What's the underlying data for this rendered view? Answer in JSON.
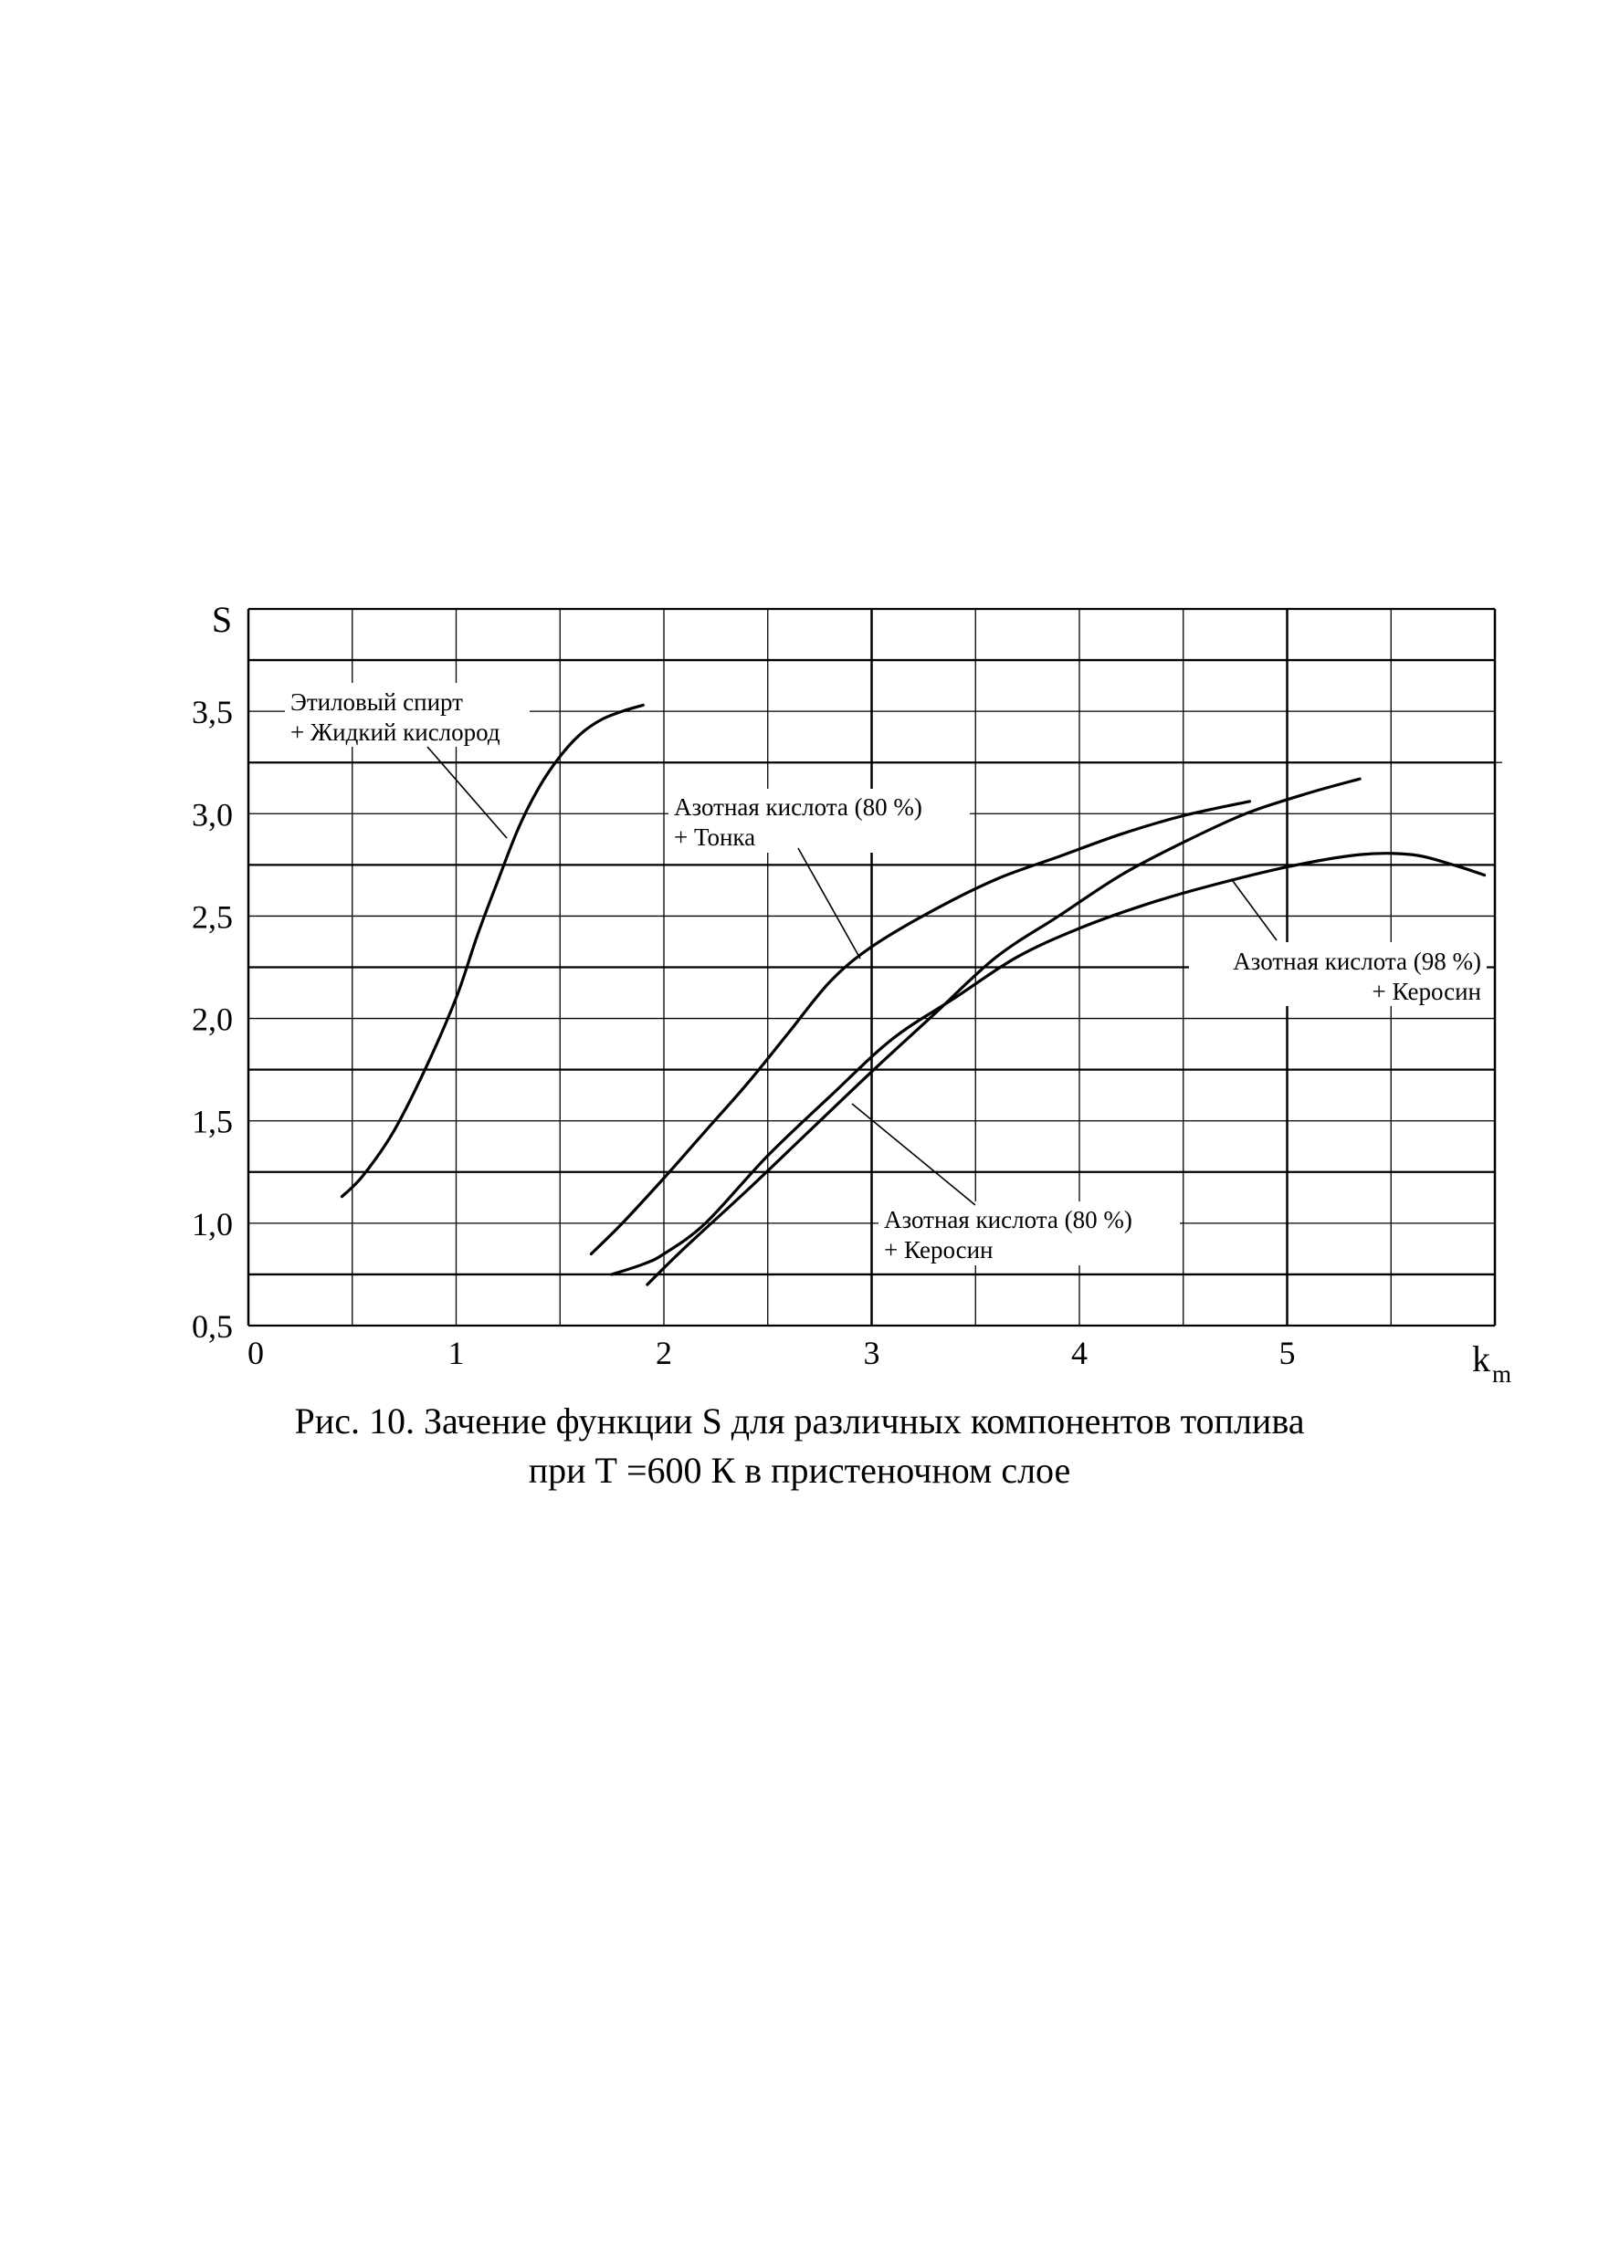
{
  "chart_data": {
    "type": "line",
    "title": "",
    "xlabel": "k",
    "xlabel_sub": "m",
    "ylabel": "S",
    "xlim": [
      0,
      6
    ],
    "ylim": [
      0.5,
      4.0
    ],
    "xticks": [
      0,
      1,
      2,
      3,
      4,
      5
    ],
    "xtick_labels": [
      "0",
      "1",
      "2",
      "3",
      "4",
      "5"
    ],
    "yticks": [
      0.5,
      1.0,
      1.5,
      2.0,
      2.5,
      3.0,
      3.5
    ],
    "ytick_labels": [
      "0,5",
      "1,0",
      "1,5",
      "2,0",
      "2,5",
      "3,0",
      "3,5"
    ],
    "grid": true,
    "series": [
      {
        "name_lines": [
          "Этиловый спирт",
          "+ Жидкий кислород"
        ],
        "x": [
          0.45,
          0.55,
          0.7,
          0.85,
          1.0,
          1.1,
          1.2,
          1.3,
          1.4,
          1.5,
          1.6,
          1.7,
          1.8,
          1.9
        ],
        "y": [
          1.13,
          1.23,
          1.45,
          1.75,
          2.1,
          2.4,
          2.67,
          2.93,
          3.13,
          3.28,
          3.39,
          3.46,
          3.5,
          3.53
        ]
      },
      {
        "name_lines": [
          "Азотная кислота (80 %)",
          "+ Тонка"
        ],
        "x": [
          1.65,
          1.8,
          2.0,
          2.2,
          2.4,
          2.6,
          2.8,
          3.0,
          3.3,
          3.6,
          3.9,
          4.2,
          4.5,
          4.82
        ],
        "y": [
          0.85,
          1.0,
          1.22,
          1.45,
          1.68,
          1.93,
          2.18,
          2.35,
          2.53,
          2.68,
          2.79,
          2.9,
          2.99,
          3.06
        ]
      },
      {
        "name_lines": [
          "Азотная кислота (98 %)",
          "+ Керосин"
        ],
        "x": [
          1.75,
          1.9,
          2.0,
          2.2,
          2.5,
          2.8,
          3.1,
          3.4,
          3.7,
          4.0,
          4.3,
          4.6,
          5.0,
          5.35,
          5.6,
          5.8,
          5.95
        ],
        "y": [
          0.75,
          0.8,
          0.85,
          1.0,
          1.33,
          1.62,
          1.9,
          2.1,
          2.3,
          2.44,
          2.55,
          2.64,
          2.74,
          2.8,
          2.8,
          2.75,
          2.7
        ]
      },
      {
        "name_lines": [
          "Азотная кислота (80 %)",
          "+ Керосин"
        ],
        "x": [
          1.92,
          2.1,
          2.4,
          2.7,
          3.0,
          3.3,
          3.6,
          3.9,
          4.2,
          4.5,
          4.8,
          5.1,
          5.35
        ],
        "y": [
          0.7,
          0.88,
          1.16,
          1.45,
          1.74,
          2.02,
          2.3,
          2.5,
          2.7,
          2.86,
          3.0,
          3.1,
          3.17
        ]
      }
    ]
  },
  "caption": {
    "line1": "Рис. 10. Зачение функции S для различных компонентов топлива",
    "line2": "при Т =600 К в пристеночном слое"
  }
}
